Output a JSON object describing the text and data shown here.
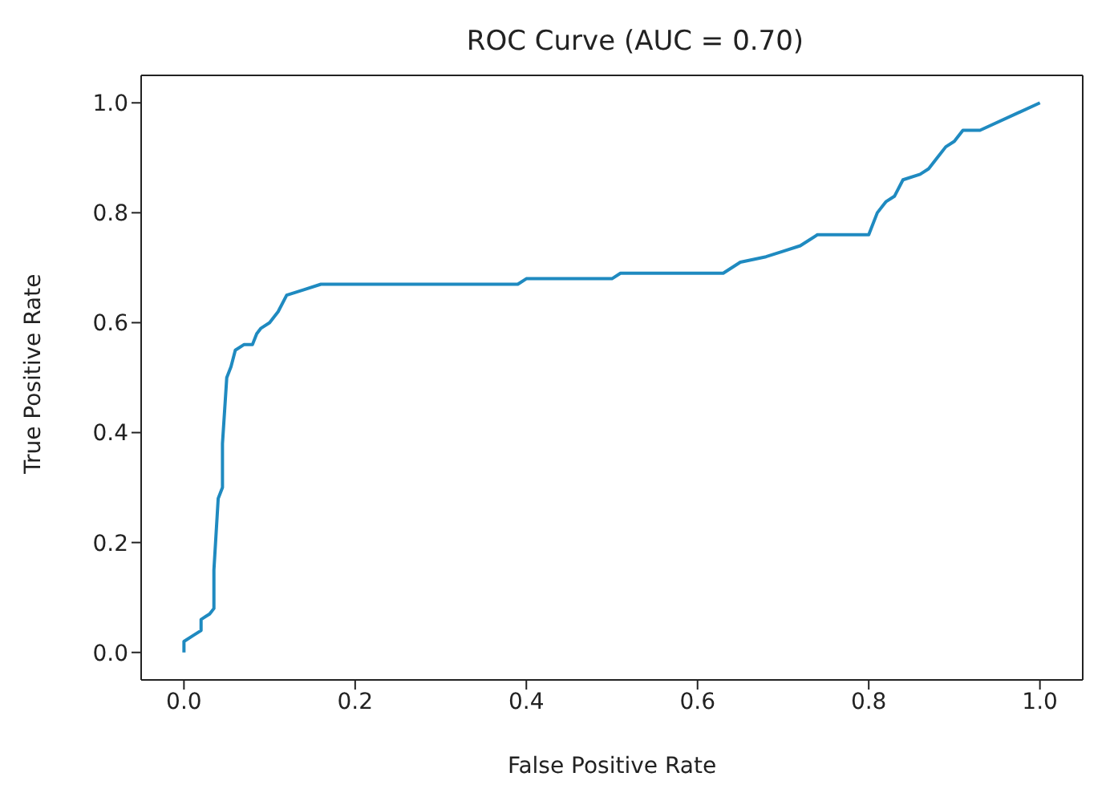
{
  "chart_data": {
    "type": "line",
    "title": "ROC Curve (AUC = 0.70)",
    "xlabel": "False Positive Rate",
    "ylabel": "True Positive Rate",
    "x": [
      0,
      0,
      0.01,
      0.02,
      0.02,
      0.03,
      0.035,
      0.035,
      0.04,
      0.045,
      0.045,
      0.05,
      0.055,
      0.06,
      0.07,
      0.08,
      0.085,
      0.09,
      0.1,
      0.11,
      0.12,
      0.14,
      0.16,
      0.39,
      0.4,
      0.5,
      0.51,
      0.63,
      0.65,
      0.68,
      0.7,
      0.72,
      0.74,
      0.8,
      0.81,
      0.82,
      0.83,
      0.84,
      0.86,
      0.87,
      0.88,
      0.89,
      0.9,
      0.91,
      0.93,
      1.0
    ],
    "series": [
      {
        "color": "#1f8ac0",
        "values": [
          0,
          0.02,
          0.03,
          0.04,
          0.06,
          0.07,
          0.08,
          0.15,
          0.28,
          0.3,
          0.38,
          0.5,
          0.52,
          0.55,
          0.56,
          0.56,
          0.58,
          0.59,
          0.6,
          0.62,
          0.65,
          0.66,
          0.67,
          0.67,
          0.68,
          0.68,
          0.69,
          0.69,
          0.71,
          0.72,
          0.73,
          0.74,
          0.76,
          0.76,
          0.8,
          0.82,
          0.83,
          0.86,
          0.87,
          0.88,
          0.9,
          0.92,
          0.93,
          0.95,
          0.95,
          1.0
        ]
      }
    ],
    "xlim": [
      -0.05,
      1.05
    ],
    "ylim": [
      -0.05,
      1.05
    ],
    "xticks": [
      {
        "value": 0,
        "label": "0.0"
      },
      {
        "value": 0.2,
        "label": "0.2"
      },
      {
        "value": 0.4,
        "label": "0.4"
      },
      {
        "value": 0.6,
        "label": "0.6"
      },
      {
        "value": 0.8,
        "label": "0.8"
      },
      {
        "value": 1,
        "label": "1.0"
      }
    ],
    "yticks": [
      {
        "value": 0,
        "label": "0.0"
      },
      {
        "value": 0.2,
        "label": "0.2"
      },
      {
        "value": 0.4,
        "label": "0.4"
      },
      {
        "value": 0.6,
        "label": "0.6"
      },
      {
        "value": 0.8,
        "label": "0.8"
      },
      {
        "value": 1,
        "label": "1.0"
      }
    ],
    "grid": false,
    "legend": false,
    "marker": "none",
    "line_style": "solid"
  }
}
